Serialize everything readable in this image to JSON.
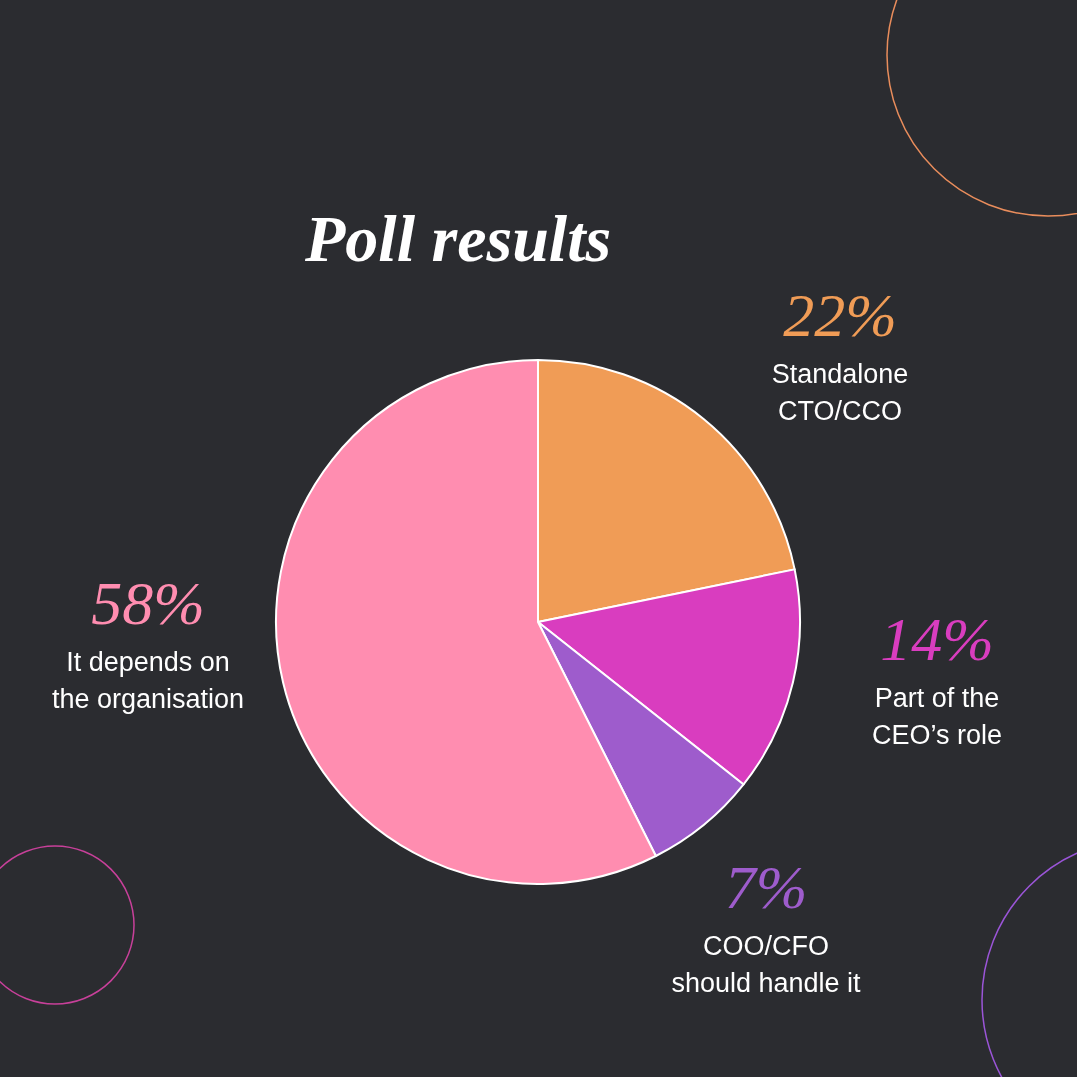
{
  "chart_data": {
    "type": "pie",
    "title": "Poll results",
    "categories": [
      "Standalone\nCTO/CCO",
      "Part of the\nCEO’s role",
      "COO/CFO\nshould handle it",
      "It depends on\nthe organisation"
    ],
    "values": [
      22,
      14,
      7,
      58
    ],
    "colors": [
      "#f09c56",
      "#d93dbf",
      "#9e5ccc",
      "#ff8db0"
    ],
    "value_labels": [
      "22%",
      "14%",
      "7%",
      "58%"
    ]
  }
}
